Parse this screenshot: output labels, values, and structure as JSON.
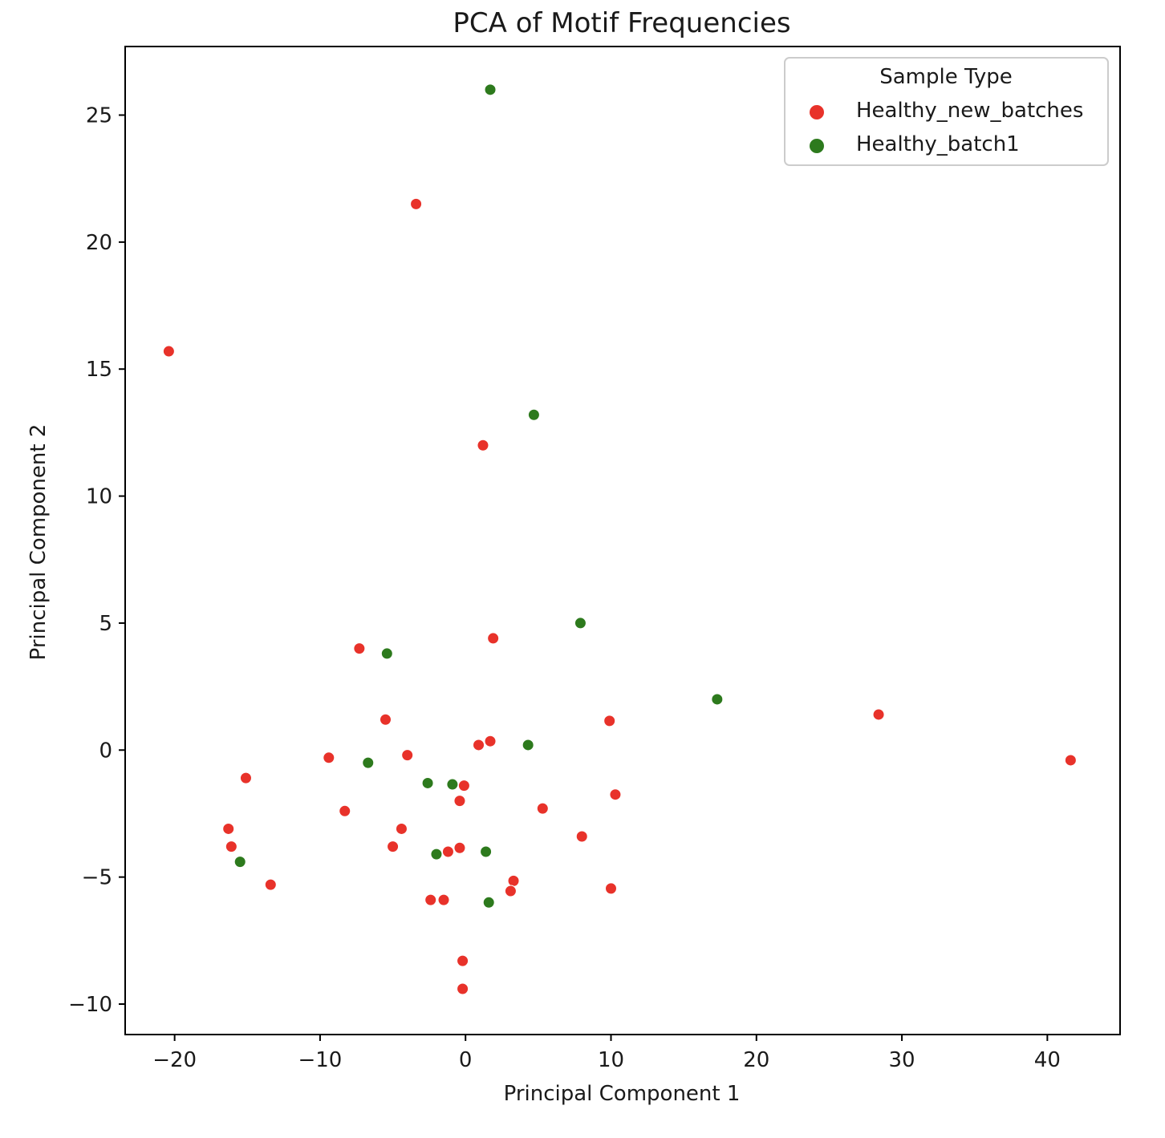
{
  "chart_data": {
    "type": "scatter",
    "title": "PCA of Motif Frequencies",
    "xlabel": "Principal Component 1",
    "ylabel": "Principal Component 2",
    "xlim": [
      -23.4,
      45.0
    ],
    "ylim": [
      -11.2,
      27.7
    ],
    "xticks": [
      -20,
      -10,
      0,
      10,
      20,
      30,
      40
    ],
    "xtick_labels": [
      "−20",
      "−10",
      "0",
      "10",
      "20",
      "30",
      "40"
    ],
    "yticks": [
      -10,
      -5,
      0,
      5,
      10,
      15,
      20,
      25
    ],
    "ytick_labels": [
      "−10",
      "−5",
      "0",
      "5",
      "10",
      "15",
      "20",
      "25"
    ],
    "grid": false,
    "legend": {
      "title": "Sample Type",
      "placement": "top-right"
    },
    "series": [
      {
        "name": "Healthy_new_batches",
        "color": "#e8322a",
        "points": [
          [
            -20.4,
            15.7
          ],
          [
            -3.4,
            21.5
          ],
          [
            1.2,
            12.0
          ],
          [
            -7.3,
            4.0
          ],
          [
            1.9,
            4.4
          ],
          [
            -5.5,
            1.2
          ],
          [
            0.9,
            0.2
          ],
          [
            1.7,
            0.35
          ],
          [
            -4.0,
            -0.2
          ],
          [
            -9.4,
            -0.3
          ],
          [
            -15.1,
            -1.1
          ],
          [
            -0.1,
            -1.4
          ],
          [
            -0.4,
            -2.0
          ],
          [
            5.3,
            -2.3
          ],
          [
            10.3,
            -1.75
          ],
          [
            -8.3,
            -2.4
          ],
          [
            -4.4,
            -3.1
          ],
          [
            -16.3,
            -3.1
          ],
          [
            -16.1,
            -3.8
          ],
          [
            -5.0,
            -3.8
          ],
          [
            -1.2,
            -4.0
          ],
          [
            -0.4,
            -3.85
          ],
          [
            8.0,
            -3.4
          ],
          [
            9.9,
            1.15
          ],
          [
            28.4,
            1.4
          ],
          [
            41.6,
            -0.4
          ],
          [
            -13.4,
            -5.3
          ],
          [
            3.3,
            -5.15
          ],
          [
            3.1,
            -5.55
          ],
          [
            10.0,
            -5.45
          ],
          [
            -2.4,
            -5.9
          ],
          [
            -1.5,
            -5.9
          ],
          [
            -0.2,
            -8.3
          ],
          [
            -0.2,
            -9.4
          ]
        ]
      },
      {
        "name": "Healthy_batch1",
        "color": "#2d7a1d",
        "points": [
          [
            1.7,
            26.0
          ],
          [
            4.7,
            13.2
          ],
          [
            7.9,
            5.0
          ],
          [
            -5.4,
            3.8
          ],
          [
            17.3,
            2.0
          ],
          [
            -6.7,
            -0.5
          ],
          [
            4.3,
            0.2
          ],
          [
            -2.6,
            -1.3
          ],
          [
            -0.9,
            -1.35
          ],
          [
            -2.0,
            -4.1
          ],
          [
            1.4,
            -4.0
          ],
          [
            -15.5,
            -4.4
          ],
          [
            1.6,
            -6.0
          ]
        ]
      }
    ]
  }
}
